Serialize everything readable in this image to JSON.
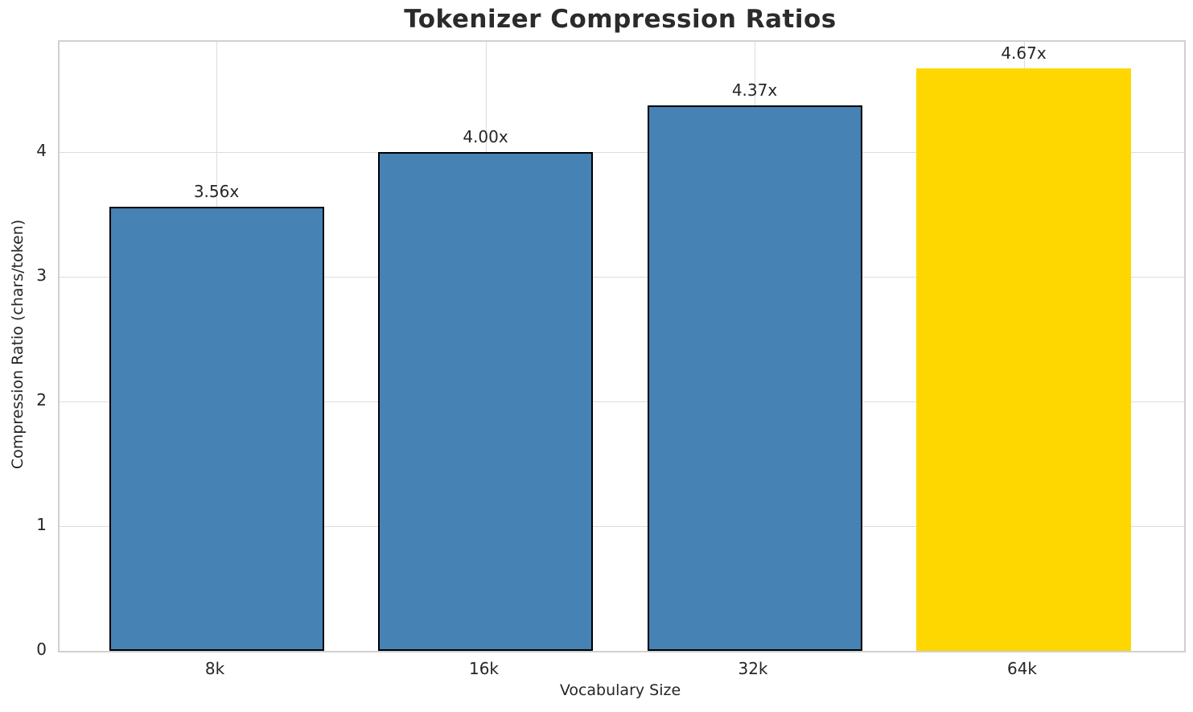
{
  "title": "Tokenizer Compression Ratios",
  "chart_data": {
    "type": "bar",
    "title": "Tokenizer Compression Ratios",
    "xlabel": "Vocabulary Size",
    "ylabel": "Compression Ratio (chars/token)",
    "categories": [
      "8k",
      "16k",
      "32k",
      "64k"
    ],
    "values": [
      3.56,
      4.0,
      4.37,
      4.67
    ],
    "bar_labels": [
      "3.56x",
      "4.00x",
      "4.37x",
      "4.67x"
    ],
    "yticks": [
      0,
      1,
      2,
      3,
      4
    ],
    "ylim": [
      0,
      4.88
    ],
    "grid": true,
    "legend": "none",
    "bar_colors": [
      "#4682B4",
      "#4682B4",
      "#4682B4",
      "#FFD700"
    ],
    "bar_edge_colors": [
      "#000000",
      "#000000",
      "#000000",
      "none"
    ],
    "highlight_index": 3,
    "style": {
      "grid_color": "#dcdcdc",
      "spine_color": "#d0d0d0",
      "text_color": "#262626",
      "background": "#ffffff"
    }
  }
}
